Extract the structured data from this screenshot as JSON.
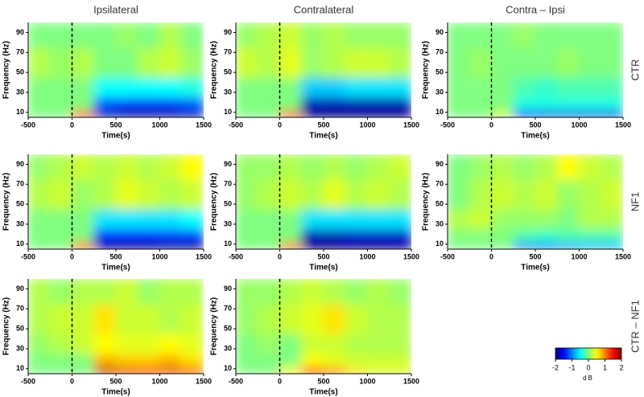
{
  "column_titles": [
    "Ipsilateral",
    "Contralateral",
    "Contra – Ipsi"
  ],
  "row_labels": [
    "CTR",
    "NF1",
    "CTR – NF1"
  ],
  "colorbar": {
    "zlim": [
      -2,
      2
    ],
    "ticks": [
      -2,
      -1,
      0,
      1,
      2
    ],
    "label": "dB",
    "colormap": "jet"
  },
  "chart_data": [
    {
      "type": "heatmap",
      "xlabel": "Time(s)",
      "ylabel": "Frequency (Hz)",
      "xlim": [
        -500,
        1500
      ],
      "ylim": [
        5,
        100
      ],
      "xticks": [
        -500,
        0,
        500,
        1000,
        1500
      ],
      "yticks": [
        10,
        30,
        50,
        70,
        90
      ],
      "marker_x": 0,
      "x_edges": [
        -500,
        -250,
        0,
        250,
        500,
        750,
        1000,
        1250,
        1500
      ],
      "y_edges": [
        5,
        12,
        25,
        45,
        75,
        100
      ],
      "values": [
        [
          0,
          0,
          1.5,
          -1.8,
          -2,
          -2,
          -2,
          -1.8
        ],
        [
          0,
          0,
          0,
          -1.2,
          -1.3,
          -1.3,
          -1.3,
          -1.2
        ],
        [
          0,
          0,
          0,
          -0.5,
          -0.5,
          -0.5,
          -0.5,
          -0.4
        ],
        [
          0.2,
          0.1,
          0.2,
          0,
          0,
          0.2,
          0.3,
          0.1
        ],
        [
          0,
          0,
          0,
          0,
          0.1,
          0,
          0.2,
          0
        ]
      ]
    },
    {
      "type": "heatmap",
      "xlabel": "Time(s)",
      "ylabel": "Frequency (Hz)",
      "xlim": [
        -500,
        1500
      ],
      "ylim": [
        5,
        100
      ],
      "xticks": [
        -500,
        0,
        500,
        1000,
        1500
      ],
      "yticks": [
        10,
        30,
        50,
        70,
        90
      ],
      "marker_x": 0,
      "x_edges": [
        -500,
        -250,
        0,
        250,
        500,
        750,
        1000,
        1250,
        1500
      ],
      "y_edges": [
        5,
        12,
        25,
        45,
        75,
        100
      ],
      "values": [
        [
          0,
          0,
          1.5,
          -2,
          -2,
          -2,
          -2,
          -2
        ],
        [
          0,
          0,
          0,
          -1.8,
          -1.8,
          -1.8,
          -1.8,
          -1.8
        ],
        [
          0,
          0,
          0,
          -0.7,
          -0.7,
          -0.6,
          -0.6,
          -0.6
        ],
        [
          0.3,
          0.2,
          0.4,
          0.1,
          0.2,
          0.3,
          0.3,
          0.2
        ],
        [
          0.1,
          0.2,
          0.3,
          0.1,
          0.2,
          0.1,
          0.1,
          0.1
        ]
      ]
    },
    {
      "type": "heatmap",
      "xlabel": "Time(s)",
      "ylabel": "Frequency (Hz)",
      "xlim": [
        -500,
        1500
      ],
      "ylim": [
        5,
        100
      ],
      "xticks": [
        -500,
        0,
        500,
        1000,
        1500
      ],
      "yticks": [
        10,
        30,
        50,
        70,
        90
      ],
      "marker_x": 0,
      "x_edges": [
        -500,
        -250,
        0,
        250,
        500,
        750,
        1000,
        1250,
        1500
      ],
      "y_edges": [
        5,
        12,
        25,
        45,
        75,
        100
      ],
      "values": [
        [
          0,
          0,
          0.3,
          -1.5,
          -1.6,
          -1.6,
          -1.6,
          -1.6
        ],
        [
          0,
          0,
          0,
          -0.4,
          -0.4,
          -0.4,
          -0.4,
          -0.4
        ],
        [
          0,
          0,
          0,
          -0.2,
          -0.3,
          -0.2,
          -0.2,
          -0.2
        ],
        [
          0,
          0.1,
          0,
          0,
          0,
          0.1,
          0,
          0
        ],
        [
          0,
          0,
          0,
          0.1,
          0,
          0,
          0,
          0
        ]
      ]
    },
    {
      "type": "heatmap",
      "xlabel": "Time(s)",
      "ylabel": "Frequency (Hz)",
      "xlim": [
        -500,
        1500
      ],
      "ylim": [
        5,
        100
      ],
      "xticks": [
        -500,
        0,
        500,
        1000,
        1500
      ],
      "yticks": [
        10,
        30,
        50,
        70,
        90
      ],
      "marker_x": 0,
      "x_edges": [
        -500,
        -250,
        0,
        250,
        500,
        750,
        1000,
        1250,
        1500
      ],
      "y_edges": [
        5,
        12,
        25,
        45,
        75,
        100
      ],
      "values": [
        [
          0,
          0,
          1.2,
          -2,
          -2,
          -2,
          -2,
          -2
        ],
        [
          0,
          0,
          0,
          -1.4,
          -1.4,
          -1.4,
          -1.3,
          -1.3
        ],
        [
          0,
          0,
          0,
          -0.6,
          -0.6,
          -0.6,
          -0.6,
          -0.5
        ],
        [
          0.2,
          0.3,
          0.1,
          0.2,
          0.4,
          0.3,
          0.2,
          0.3
        ],
        [
          0.1,
          0.2,
          0.3,
          0.2,
          0.3,
          0.2,
          0.3,
          0.5
        ]
      ]
    },
    {
      "type": "heatmap",
      "xlabel": "Time(s)",
      "ylabel": "Frequency (Hz)",
      "xlim": [
        -500,
        1500
      ],
      "ylim": [
        5,
        100
      ],
      "xticks": [
        -500,
        0,
        500,
        1000,
        1500
      ],
      "yticks": [
        10,
        30,
        50,
        70,
        90
      ],
      "marker_x": 0,
      "x_edges": [
        -500,
        -250,
        0,
        250,
        500,
        750,
        1000,
        1250,
        1500
      ],
      "y_edges": [
        5,
        12,
        25,
        45,
        75,
        100
      ],
      "values": [
        [
          0,
          0,
          1.2,
          -2,
          -2,
          -2,
          -2,
          -2
        ],
        [
          0,
          0,
          0,
          -1.8,
          -1.8,
          -1.7,
          -1.7,
          -1.7
        ],
        [
          0,
          0,
          0,
          -0.6,
          -0.6,
          -0.6,
          -0.6,
          -0.6
        ],
        [
          0.1,
          0.2,
          0.3,
          0.2,
          0.4,
          0.2,
          0.3,
          0.2
        ],
        [
          0.1,
          0.1,
          0.2,
          0.1,
          0.2,
          0.1,
          0.2,
          0.3
        ]
      ]
    },
    {
      "type": "heatmap",
      "xlabel": "Time(s)",
      "ylabel": "Frequency (Hz)",
      "xlim": [
        -500,
        1500
      ],
      "ylim": [
        5,
        100
      ],
      "xticks": [
        -500,
        0,
        500,
        1000,
        1500
      ],
      "yticks": [
        10,
        30,
        50,
        70,
        90
      ],
      "marker_x": 0,
      "x_edges": [
        -500,
        -250,
        0,
        250,
        500,
        750,
        1000,
        1250,
        1500
      ],
      "y_edges": [
        5,
        12,
        25,
        45,
        75,
        100
      ],
      "values": [
        [
          0,
          0,
          0,
          -1,
          -1,
          -0.9,
          -0.8,
          -0.8
        ],
        [
          0,
          0,
          0,
          -0.2,
          -0.3,
          -0.2,
          -0.2,
          -0.2
        ],
        [
          0.2,
          0.3,
          0.1,
          0.1,
          0.1,
          0,
          0.2,
          0.2
        ],
        [
          0,
          0.2,
          0.3,
          0.2,
          0.3,
          0.1,
          0.2,
          0.3
        ],
        [
          0,
          0.1,
          0.2,
          0.1,
          0.2,
          0.5,
          0.3,
          0.2
        ]
      ]
    },
    {
      "type": "heatmap",
      "xlabel": "Time(s)",
      "ylabel": "Frequency (Hz)",
      "xlim": [
        -500,
        1500
      ],
      "ylim": [
        5,
        100
      ],
      "xticks": [
        -500,
        0,
        500,
        1000,
        1500
      ],
      "yticks": [
        10,
        30,
        50,
        70,
        90
      ],
      "marker_x": 0,
      "x_edges": [
        -500,
        -250,
        0,
        250,
        500,
        750,
        1000,
        1250,
        1500
      ],
      "y_edges": [
        5,
        12,
        25,
        45,
        75,
        100
      ],
      "values": [
        [
          0,
          0,
          0,
          1.8,
          1.6,
          1.5,
          1.6,
          1.4
        ],
        [
          0,
          0,
          0,
          0.8,
          0.7,
          0.7,
          0.8,
          0.6
        ],
        [
          0.1,
          0.2,
          0.3,
          0.5,
          0.4,
          0.4,
          0.5,
          0.4
        ],
        [
          0.2,
          0.3,
          0.3,
          0.6,
          0.3,
          0.3,
          0.2,
          0.3
        ],
        [
          0.2,
          0.1,
          0.2,
          0.2,
          0.3,
          0.1,
          0.2,
          0.2
        ]
      ]
    },
    {
      "type": "heatmap",
      "xlabel": "Time(s)",
      "ylabel": "Frequency (Hz)",
      "xlim": [
        -500,
        1500
      ],
      "ylim": [
        5,
        100
      ],
      "xticks": [
        -500,
        0,
        500,
        1000,
        1500
      ],
      "yticks": [
        10,
        30,
        50,
        70,
        90
      ],
      "marker_x": 0,
      "x_edges": [
        -500,
        -250,
        0,
        250,
        500,
        750,
        1000,
        1250,
        1500
      ],
      "y_edges": [
        5,
        12,
        25,
        45,
        75,
        100
      ],
      "values": [
        [
          0,
          0,
          0.5,
          1.5,
          1,
          0.6,
          0.4,
          0.4
        ],
        [
          0,
          0,
          0,
          0.5,
          0.4,
          0.3,
          0.3,
          0.3
        ],
        [
          0,
          0.1,
          0,
          0.3,
          0.3,
          0.2,
          0.2,
          0.2
        ],
        [
          0.1,
          0.2,
          0.3,
          0.4,
          0.6,
          0.3,
          0.2,
          0.2
        ],
        [
          0.1,
          0.1,
          0.2,
          0.3,
          0.2,
          0.1,
          0.2,
          0.1
        ]
      ]
    }
  ]
}
